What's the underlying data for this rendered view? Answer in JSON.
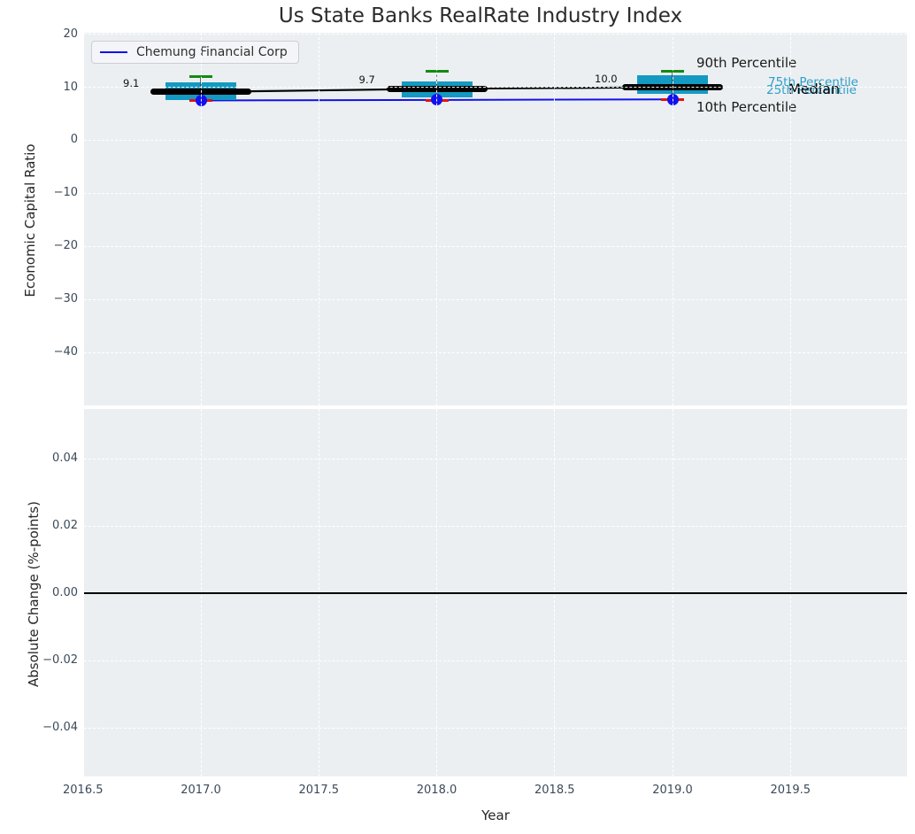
{
  "title": "Us State Banks RealRate Industry Index",
  "legend": {
    "label": "Chemung Financial Corp"
  },
  "colors": {
    "figure_bg": "#ffffff",
    "plot_bg": "#eceff1",
    "grid": "#ffffff",
    "box_fill": "#149ac2",
    "percentile_text": "#2e9fc9",
    "green_cap": "#128a12",
    "red_cap": "#e51212",
    "company_line": "#1111ee",
    "median_line": "#000000",
    "tick_label": "#3b4a59",
    "text": "#262626"
  },
  "annotations": {
    "p90": "90th Percentile",
    "p75": "75th Percentile",
    "p25": "25th Percentile",
    "median": "Median",
    "p10": "10th Percentile"
  },
  "chart_data": [
    {
      "type": "boxplot+line",
      "title": "Us State Banks RealRate Industry Index",
      "ylabel": "Economic Capital Ratio",
      "ylim": [
        -50.5,
        20.5
      ],
      "yticks": [
        20,
        10,
        0,
        -10,
        -20,
        -30,
        -40
      ],
      "ytick_labels": [
        "20",
        "10",
        "0",
        "−10",
        "−20",
        "−30",
        "−40"
      ],
      "xlim": [
        2016.49,
        2019.99
      ],
      "grid": "white dashed on light gray",
      "legend_position": "upper left",
      "x": [
        2017,
        2018,
        2019
      ],
      "boxes": [
        {
          "year": 2017,
          "median": 9.1,
          "median_label": "9.1",
          "q3": 11.0,
          "q1": 7.6,
          "p90": 12.0,
          "p10": 7.45,
          "company": 7.5
        },
        {
          "year": 2018,
          "median": 9.7,
          "median_label": "9.7",
          "q3": 11.1,
          "q1": 8.0,
          "p90": 13.0,
          "p10": 7.5,
          "company": 7.6
        },
        {
          "year": 2019,
          "median": 10.0,
          "median_label": "10.0",
          "q3": 12.2,
          "q1": 8.7,
          "p90": 13.0,
          "p10": 7.7,
          "company": 7.7
        }
      ],
      "series": [
        {
          "name": "Median",
          "values": [
            9.1,
            9.7,
            10.0
          ]
        },
        {
          "name": "90th Percentile",
          "values": [
            12.0,
            13.0,
            13.0
          ]
        },
        {
          "name": "75th Percentile",
          "values": [
            11.0,
            11.1,
            12.2
          ]
        },
        {
          "name": "25th Percentile",
          "values": [
            7.6,
            8.0,
            8.7
          ]
        },
        {
          "name": "10th Percentile",
          "values": [
            7.45,
            7.5,
            7.7
          ]
        },
        {
          "name": "Chemung Financial Corp",
          "values": [
            7.5,
            7.6,
            7.7
          ]
        }
      ]
    },
    {
      "type": "line",
      "ylabel": "Absolute Change (%-points)",
      "xlabel": "Year",
      "ylim": [
        -0.055,
        0.055
      ],
      "yticks": [
        0.04,
        0.02,
        0.0,
        -0.02,
        -0.04
      ],
      "ytick_labels": [
        "0.04",
        "0.02",
        "0.00",
        "−0.02",
        "−0.04"
      ],
      "xticks": [
        2016.5,
        2017.0,
        2017.5,
        2018.0,
        2018.5,
        2019.0,
        2019.5
      ],
      "xtick_labels": [
        "2016.5",
        "2017.0",
        "2017.5",
        "2018.0",
        "2018.5",
        "2019.0",
        "2019.5"
      ],
      "zero_line": 0.0,
      "series": []
    }
  ]
}
